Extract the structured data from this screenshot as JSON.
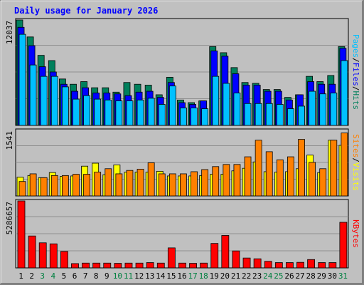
{
  "colors": {
    "background": "#c0c0c0",
    "panel": "#c0c0c0",
    "title": "#0000ff",
    "hits": "#00805c",
    "files": "#0000ff",
    "pages": "#00c0ff",
    "visits": "#ffff00",
    "sites": "#ff8000",
    "kbytes": "#ff0000",
    "weekday_label": "#000000",
    "weekend_label": "#008040"
  },
  "chart_data": [
    {
      "type": "bar",
      "title": "Daily usage for January 2026",
      "categories": [
        "1",
        "2",
        "3",
        "4",
        "5",
        "6",
        "7",
        "8",
        "9",
        "10",
        "11",
        "12",
        "13",
        "14",
        "15",
        "16",
        "17",
        "18",
        "19",
        "20",
        "21",
        "22",
        "23",
        "24",
        "25",
        "26",
        "27",
        "28",
        "29",
        "30",
        "31"
      ],
      "weekend_days": [
        "3",
        "4",
        "10",
        "11",
        "17",
        "18",
        "24",
        "25",
        "31"
      ],
      "ymax_label": "12037",
      "ylim": [
        0,
        12037
      ],
      "legend": {
        "parts": [
          "Pages",
          "Files",
          "Hits"
        ],
        "separator": "/"
      },
      "grid": true,
      "series": [
        {
          "name": "Hits",
          "values": [
            12037,
            10100,
            8000,
            7400,
            5300,
            4700,
            5000,
            4300,
            4300,
            3800,
            4900,
            4700,
            4600,
            3500,
            5500,
            2900,
            2600,
            2800,
            9000,
            8300,
            6600,
            4900,
            4800,
            4100,
            4100,
            3200,
            3500,
            5600,
            5000,
            5700,
            9000
          ]
        },
        {
          "name": "Files",
          "values": [
            11200,
            9100,
            6700,
            6100,
            4700,
            3900,
            4300,
            3700,
            3700,
            3600,
            3400,
            3800,
            3900,
            3200,
            4900,
            2600,
            2400,
            2800,
            8500,
            7900,
            5900,
            4600,
            4600,
            3900,
            3900,
            2900,
            3500,
            5000,
            4700,
            4700,
            8800
          ]
        },
        {
          "name": "Pages",
          "values": [
            10400,
            6900,
            5600,
            5600,
            4400,
            3000,
            3400,
            3000,
            2900,
            2800,
            2800,
            2900,
            3100,
            2400,
            4500,
            2000,
            2000,
            1900,
            5600,
            4800,
            3700,
            2500,
            2500,
            2500,
            2400,
            1900,
            2200,
            3900,
            3600,
            3700,
            7400
          ]
        }
      ]
    },
    {
      "type": "bar",
      "categories": [
        "1",
        "2",
        "3",
        "4",
        "5",
        "6",
        "7",
        "8",
        "9",
        "10",
        "11",
        "12",
        "13",
        "14",
        "15",
        "16",
        "17",
        "18",
        "19",
        "20",
        "21",
        "22",
        "23",
        "24",
        "25",
        "26",
        "27",
        "28",
        "29",
        "30",
        "31"
      ],
      "ymax_label": "1541",
      "ylim": [
        0,
        1541
      ],
      "legend": {
        "parts": [
          "Sites",
          "Visits"
        ],
        "separator": "/"
      },
      "grid": true,
      "series": [
        {
          "name": "Visits",
          "values": [
            440,
            480,
            430,
            550,
            460,
            470,
            700,
            770,
            500,
            730,
            560,
            560,
            560,
            580,
            470,
            470,
            470,
            480,
            510,
            510,
            590,
            650,
            800,
            570,
            560,
            570,
            640,
            960,
            550,
            1310,
            1190
          ]
        },
        {
          "name": "Sites",
          "values": [
            340,
            520,
            430,
            480,
            480,
            510,
            510,
            560,
            640,
            520,
            600,
            630,
            780,
            520,
            520,
            520,
            570,
            620,
            690,
            740,
            740,
            920,
            1310,
            1040,
            850,
            920,
            1330,
            790,
            640,
            1310,
            1480
          ]
        }
      ]
    },
    {
      "type": "bar",
      "categories": [
        "1",
        "2",
        "3",
        "4",
        "5",
        "6",
        "7",
        "8",
        "9",
        "10",
        "11",
        "12",
        "13",
        "14",
        "15",
        "16",
        "17",
        "18",
        "19",
        "20",
        "21",
        "22",
        "23",
        "24",
        "25",
        "26",
        "27",
        "28",
        "29",
        "30",
        "31"
      ],
      "ymax_label": "5286657",
      "ylim": [
        0,
        5286657
      ],
      "legend": {
        "parts": [
          "KBytes"
        ],
        "separator": ""
      },
      "grid": true,
      "series": [
        {
          "name": "KBytes",
          "values": [
            5286657,
            2520000,
            1980000,
            1900000,
            1300000,
            340000,
            380000,
            380000,
            380000,
            360000,
            380000,
            380000,
            420000,
            380000,
            1580000,
            380000,
            360000,
            380000,
            1930000,
            2560000,
            1340000,
            780000,
            720000,
            520000,
            420000,
            420000,
            440000,
            660000,
            420000,
            420000,
            3600000
          ]
        }
      ]
    }
  ]
}
